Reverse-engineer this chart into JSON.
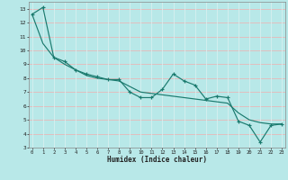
{
  "xlabel": "Humidex (Indice chaleur)",
  "xlim": [
    0,
    23
  ],
  "ylim": [
    3,
    13.5
  ],
  "yticks": [
    3,
    4,
    5,
    6,
    7,
    8,
    9,
    10,
    11,
    12,
    13
  ],
  "xticks": [
    0,
    1,
    2,
    3,
    4,
    5,
    6,
    7,
    8,
    9,
    10,
    11,
    12,
    13,
    14,
    15,
    16,
    17,
    18,
    19,
    20,
    21,
    22,
    23
  ],
  "line_color": "#1a7a6e",
  "bg_color": "#b8e8e8",
  "grid_color_v": "#d8f0f0",
  "grid_color_h": "#e8b8b8",
  "data_x": [
    0,
    1,
    2,
    3,
    4,
    5,
    6,
    7,
    8,
    9,
    10,
    11,
    12,
    13,
    14,
    15,
    16,
    17,
    18,
    19,
    20,
    21,
    22,
    23
  ],
  "data_y1": [
    12.6,
    13.1,
    9.5,
    9.2,
    8.6,
    8.3,
    8.1,
    7.9,
    7.9,
    7.0,
    6.6,
    6.6,
    7.2,
    8.3,
    7.8,
    7.5,
    6.5,
    6.7,
    6.6,
    4.9,
    4.6,
    3.4,
    4.6,
    4.7
  ],
  "data_y2": [
    12.6,
    10.5,
    9.5,
    9.0,
    8.6,
    8.2,
    8.0,
    7.9,
    7.8,
    7.4,
    7.0,
    6.9,
    6.8,
    6.7,
    6.6,
    6.5,
    6.4,
    6.3,
    6.2,
    5.5,
    5.0,
    4.8,
    4.7,
    4.7
  ]
}
